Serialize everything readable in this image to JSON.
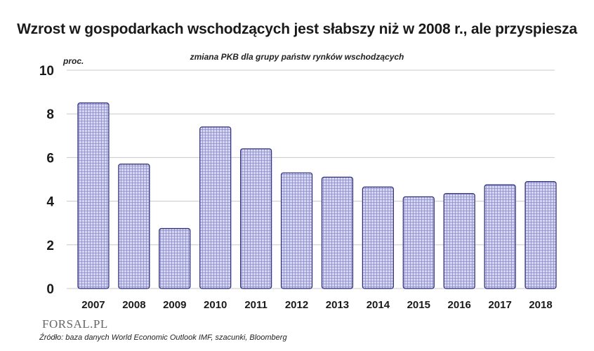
{
  "chart_data": {
    "type": "bar",
    "title": "Wzrost w gospodarkach wschodzących jest słabszy niż w 2008 r., ale przyspiesza",
    "subtitle": "zmiana PKB dla grupy państw rynków wschodzących",
    "ylabel": "proc.",
    "xlabel": "",
    "categories": [
      "2007",
      "2008",
      "2009",
      "2010",
      "2011",
      "2012",
      "2013",
      "2014",
      "2015",
      "2016",
      "2017",
      "2018"
    ],
    "values": [
      8.5,
      5.7,
      2.75,
      7.4,
      6.4,
      5.3,
      5.1,
      4.65,
      4.2,
      4.35,
      4.75,
      4.9
    ],
    "ylim": [
      0,
      10
    ],
    "yticks": [
      "0",
      "2",
      "4",
      "6",
      "8",
      "10"
    ],
    "grid": true,
    "colors": {
      "bar_fill": "#d6d6f0",
      "bar_stroke": "#2b2b78",
      "bar_hatch": "#8a8acc",
      "grid": "#c8c8c8"
    }
  },
  "branding": {
    "logo": "FORSAL.PL"
  },
  "source": "Źródło: baza danych World Economic Outlook IMF, szacunki, Bloomberg"
}
